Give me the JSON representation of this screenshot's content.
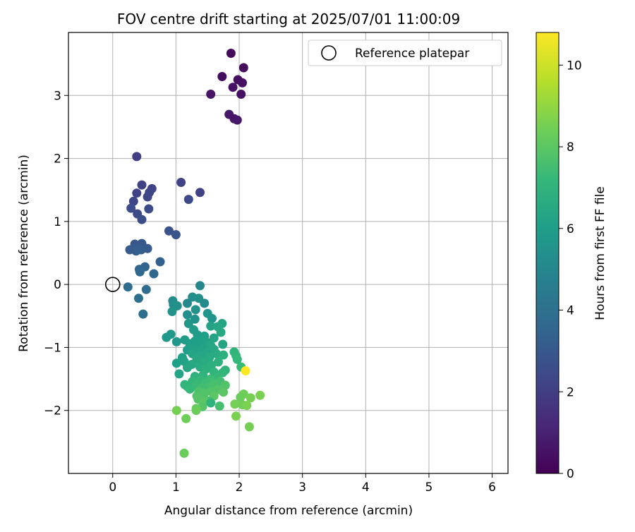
{
  "chart_data": {
    "type": "scatter",
    "title": "FOV centre drift starting at 2025/07/01 11:00:09",
    "xlabel": "Angular distance from reference (arcmin)",
    "ylabel": "Rotation from reference (arcmin)",
    "colorbar_label": "Hours from first FF file",
    "xlim": [
      -0.7,
      6.25
    ],
    "ylim": [
      -3.0,
      4.0
    ],
    "xticks": [
      "0",
      "1",
      "2",
      "3",
      "4",
      "5",
      "6"
    ],
    "yticks": [
      "−2",
      "−1",
      "0",
      "1",
      "2",
      "3"
    ],
    "colorbar_range": [
      0,
      10.8
    ],
    "colorbar_ticks": [
      "0",
      "2",
      "4",
      "6",
      "8",
      "10"
    ],
    "colormap": "viridis",
    "grid": true,
    "legend": {
      "placement": "top-right",
      "entries": [
        "Reference platepar"
      ]
    },
    "reference_point": {
      "x": 0,
      "y": 0
    },
    "points": [
      {
        "x": 1.87,
        "y": 3.67,
        "h": 0.3
      },
      {
        "x": 2.07,
        "y": 3.44,
        "h": 0.3
      },
      {
        "x": 1.73,
        "y": 3.3,
        "h": 0.4
      },
      {
        "x": 1.98,
        "y": 3.25,
        "h": 0.4
      },
      {
        "x": 2.05,
        "y": 3.2,
        "h": 0.5
      },
      {
        "x": 1.9,
        "y": 3.13,
        "h": 0.5
      },
      {
        "x": 1.55,
        "y": 3.02,
        "h": 0.6
      },
      {
        "x": 2.03,
        "y": 3.02,
        "h": 0.5
      },
      {
        "x": 1.84,
        "y": 2.7,
        "h": 0.7
      },
      {
        "x": 1.92,
        "y": 2.63,
        "h": 0.6
      },
      {
        "x": 1.97,
        "y": 2.61,
        "h": 0.7
      },
      {
        "x": 0.38,
        "y": 2.03,
        "h": 2.0
      },
      {
        "x": 1.08,
        "y": 1.62,
        "h": 2.2
      },
      {
        "x": 0.46,
        "y": 1.58,
        "h": 2.1
      },
      {
        "x": 0.62,
        "y": 1.52,
        "h": 2.2
      },
      {
        "x": 0.58,
        "y": 1.46,
        "h": 2.3
      },
      {
        "x": 1.38,
        "y": 1.46,
        "h": 2.1
      },
      {
        "x": 0.38,
        "y": 1.45,
        "h": 2.2
      },
      {
        "x": 0.55,
        "y": 1.39,
        "h": 2.3
      },
      {
        "x": 1.2,
        "y": 1.35,
        "h": 2.4
      },
      {
        "x": 0.33,
        "y": 1.32,
        "h": 2.3
      },
      {
        "x": 0.29,
        "y": 1.21,
        "h": 2.6
      },
      {
        "x": 0.57,
        "y": 1.2,
        "h": 2.5
      },
      {
        "x": 0.39,
        "y": 1.12,
        "h": 2.5
      },
      {
        "x": 0.46,
        "y": 1.03,
        "h": 2.6
      },
      {
        "x": 0.89,
        "y": 0.85,
        "h": 2.8
      },
      {
        "x": 1.0,
        "y": 0.79,
        "h": 2.8
      },
      {
        "x": 0.35,
        "y": 0.64,
        "h": 3.0
      },
      {
        "x": 0.46,
        "y": 0.65,
        "h": 3.0
      },
      {
        "x": 0.4,
        "y": 0.59,
        "h": 3.1
      },
      {
        "x": 0.27,
        "y": 0.55,
        "h": 3.1
      },
      {
        "x": 0.55,
        "y": 0.57,
        "h": 3.1
      },
      {
        "x": 0.45,
        "y": 0.55,
        "h": 3.2
      },
      {
        "x": 0.37,
        "y": 0.53,
        "h": 3.2
      },
      {
        "x": 0.75,
        "y": 0.36,
        "h": 3.3
      },
      {
        "x": 0.51,
        "y": 0.28,
        "h": 3.5
      },
      {
        "x": 0.42,
        "y": 0.24,
        "h": 3.5
      },
      {
        "x": 0.65,
        "y": 0.17,
        "h": 3.6
      },
      {
        "x": 0.43,
        "y": 0.2,
        "h": 3.6
      },
      {
        "x": 0.24,
        "y": -0.04,
        "h": 3.8
      },
      {
        "x": 0.53,
        "y": -0.08,
        "h": 3.8
      },
      {
        "x": 0.41,
        "y": -0.22,
        "h": 3.9
      },
      {
        "x": 0.48,
        "y": -0.47,
        "h": 3.9
      },
      {
        "x": 1.38,
        "y": -0.02,
        "h": 5.0
      },
      {
        "x": 0.95,
        "y": -0.26,
        "h": 5.2
      },
      {
        "x": 1.26,
        "y": -0.2,
        "h": 5.3
      },
      {
        "x": 1.36,
        "y": -0.22,
        "h": 5.4
      },
      {
        "x": 1.18,
        "y": -0.3,
        "h": 5.1
      },
      {
        "x": 1.45,
        "y": -0.3,
        "h": 5.2
      },
      {
        "x": 0.96,
        "y": -0.32,
        "h": 5.3
      },
      {
        "x": 1.02,
        "y": -0.34,
        "h": 5.4
      },
      {
        "x": 1.31,
        "y": -0.4,
        "h": 5.5
      },
      {
        "x": 0.94,
        "y": -0.43,
        "h": 5.5
      },
      {
        "x": 1.5,
        "y": -0.46,
        "h": 5.6
      },
      {
        "x": 1.18,
        "y": -0.48,
        "h": 5.4
      },
      {
        "x": 1.57,
        "y": -0.54,
        "h": 5.6
      },
      {
        "x": 1.3,
        "y": -0.55,
        "h": 5.5
      },
      {
        "x": 1.73,
        "y": -0.62,
        "h": 6.3
      },
      {
        "x": 1.2,
        "y": -0.62,
        "h": 5.7
      },
      {
        "x": 1.55,
        "y": -0.66,
        "h": 6.2
      },
      {
        "x": 1.66,
        "y": -0.67,
        "h": 6.4
      },
      {
        "x": 1.28,
        "y": -0.72,
        "h": 5.9
      },
      {
        "x": 1.71,
        "y": -0.76,
        "h": 6.5
      },
      {
        "x": 0.92,
        "y": -0.79,
        "h": 5.8
      },
      {
        "x": 1.34,
        "y": -0.8,
        "h": 5.9
      },
      {
        "x": 1.45,
        "y": -0.82,
        "h": 6.0
      },
      {
        "x": 0.85,
        "y": -0.84,
        "h": 5.8
      },
      {
        "x": 1.6,
        "y": -0.85,
        "h": 6.3
      },
      {
        "x": 1.4,
        "y": -0.88,
        "h": 6.1
      },
      {
        "x": 1.14,
        "y": -0.88,
        "h": 5.9
      },
      {
        "x": 1.3,
        "y": -0.9,
        "h": 6.0
      },
      {
        "x": 1.01,
        "y": -0.91,
        "h": 5.8
      },
      {
        "x": 1.49,
        "y": -0.92,
        "h": 6.2
      },
      {
        "x": 1.22,
        "y": -0.94,
        "h": 6.0
      },
      {
        "x": 1.74,
        "y": -0.95,
        "h": 6.3
      },
      {
        "x": 1.37,
        "y": -0.96,
        "h": 6.1
      },
      {
        "x": 1.55,
        "y": -0.97,
        "h": 6.4
      },
      {
        "x": 1.25,
        "y": -1.0,
        "h": 6.1
      },
      {
        "x": 1.42,
        "y": -1.02,
        "h": 6.2
      },
      {
        "x": 1.6,
        "y": -1.03,
        "h": 6.5
      },
      {
        "x": 1.18,
        "y": -1.04,
        "h": 6.0
      },
      {
        "x": 1.31,
        "y": -1.06,
        "h": 6.2
      },
      {
        "x": 1.49,
        "y": -1.08,
        "h": 6.4
      },
      {
        "x": 1.92,
        "y": -1.07,
        "h": 7.0
      },
      {
        "x": 1.26,
        "y": -1.1,
        "h": 6.3
      },
      {
        "x": 1.64,
        "y": -1.1,
        "h": 6.6
      },
      {
        "x": 1.75,
        "y": -1.12,
        "h": 6.8
      },
      {
        "x": 1.4,
        "y": -1.13,
        "h": 6.4
      },
      {
        "x": 1.95,
        "y": -1.13,
        "h": 7.1
      },
      {
        "x": 1.1,
        "y": -1.16,
        "h": 6.1
      },
      {
        "x": 1.53,
        "y": -1.16,
        "h": 6.6
      },
      {
        "x": 1.33,
        "y": -1.19,
        "h": 6.5
      },
      {
        "x": 1.13,
        "y": -1.22,
        "h": 6.2
      },
      {
        "x": 1.45,
        "y": -1.22,
        "h": 6.6
      },
      {
        "x": 1.97,
        "y": -1.19,
        "h": 7.2
      },
      {
        "x": 1.67,
        "y": -1.23,
        "h": 6.8
      },
      {
        "x": 1.01,
        "y": -1.25,
        "h": 6.1
      },
      {
        "x": 1.25,
        "y": -1.27,
        "h": 6.5
      },
      {
        "x": 1.56,
        "y": -1.28,
        "h": 6.8
      },
      {
        "x": 1.38,
        "y": -1.31,
        "h": 6.6
      },
      {
        "x": 1.18,
        "y": -1.32,
        "h": 6.4
      },
      {
        "x": 2.03,
        "y": -1.31,
        "h": 7.3
      },
      {
        "x": 1.48,
        "y": -1.34,
        "h": 6.8
      },
      {
        "x": 1.78,
        "y": -1.36,
        "h": 7.0
      },
      {
        "x": 2.1,
        "y": -1.37,
        "h": 10.8
      },
      {
        "x": 1.6,
        "y": -1.39,
        "h": 7.0
      },
      {
        "x": 1.74,
        "y": -1.4,
        "h": 7.1
      },
      {
        "x": 1.05,
        "y": -1.42,
        "h": 6.3
      },
      {
        "x": 1.43,
        "y": -1.44,
        "h": 7.0
      },
      {
        "x": 1.3,
        "y": -1.46,
        "h": 6.9
      },
      {
        "x": 1.64,
        "y": -1.47,
        "h": 7.2
      },
      {
        "x": 1.55,
        "y": -1.5,
        "h": 7.4
      },
      {
        "x": 1.38,
        "y": -1.52,
        "h": 7.2
      },
      {
        "x": 1.26,
        "y": -1.54,
        "h": 7.1
      },
      {
        "x": 1.7,
        "y": -1.54,
        "h": 7.5
      },
      {
        "x": 1.47,
        "y": -1.56,
        "h": 7.4
      },
      {
        "x": 1.6,
        "y": -1.58,
        "h": 7.6
      },
      {
        "x": 1.14,
        "y": -1.59,
        "h": 7.0
      },
      {
        "x": 1.32,
        "y": -1.6,
        "h": 7.3
      },
      {
        "x": 1.78,
        "y": -1.6,
        "h": 7.8
      },
      {
        "x": 1.18,
        "y": -1.62,
        "h": 7.1
      },
      {
        "x": 1.51,
        "y": -1.63,
        "h": 7.6
      },
      {
        "x": 1.42,
        "y": -1.64,
        "h": 7.5
      },
      {
        "x": 1.22,
        "y": -1.66,
        "h": 7.2
      },
      {
        "x": 1.66,
        "y": -1.67,
        "h": 7.8
      },
      {
        "x": 1.36,
        "y": -1.7,
        "h": 7.7
      },
      {
        "x": 1.56,
        "y": -1.7,
        "h": 7.8
      },
      {
        "x": 1.75,
        "y": -1.71,
        "h": 8.0
      },
      {
        "x": 1.45,
        "y": -1.73,
        "h": 7.8
      },
      {
        "x": 2.07,
        "y": -1.74,
        "h": 8.4
      },
      {
        "x": 2.33,
        "y": -1.76,
        "h": 8.6
      },
      {
        "x": 1.33,
        "y": -1.77,
        "h": 7.8
      },
      {
        "x": 1.6,
        "y": -1.77,
        "h": 8.0
      },
      {
        "x": 2.02,
        "y": -1.79,
        "h": 8.3
      },
      {
        "x": 2.18,
        "y": -1.8,
        "h": 8.5
      },
      {
        "x": 1.35,
        "y": -1.82,
        "h": 7.9
      },
      {
        "x": 1.53,
        "y": -1.85,
        "h": 7.7
      },
      {
        "x": 1.44,
        "y": -1.86,
        "h": 8.0
      },
      {
        "x": 1.55,
        "y": -1.88,
        "h": 7.0
      },
      {
        "x": 1.93,
        "y": -1.9,
        "h": 8.5
      },
      {
        "x": 2.05,
        "y": -1.91,
        "h": 8.4
      },
      {
        "x": 2.12,
        "y": -1.92,
        "h": 8.6
      },
      {
        "x": 1.69,
        "y": -1.93,
        "h": 7.6
      },
      {
        "x": 1.42,
        "y": -1.94,
        "h": 7.9
      },
      {
        "x": 1.32,
        "y": -1.97,
        "h": 8.2
      },
      {
        "x": 1.01,
        "y": -2.0,
        "h": 8.5
      },
      {
        "x": 1.32,
        "y": -2.0,
        "h": 8.3
      },
      {
        "x": 1.95,
        "y": -2.09,
        "h": 8.6
      },
      {
        "x": 1.16,
        "y": -2.13,
        "h": 8.4
      },
      {
        "x": 2.16,
        "y": -2.26,
        "h": 8.5
      },
      {
        "x": 1.13,
        "y": -2.68,
        "h": 8.3
      }
    ]
  }
}
